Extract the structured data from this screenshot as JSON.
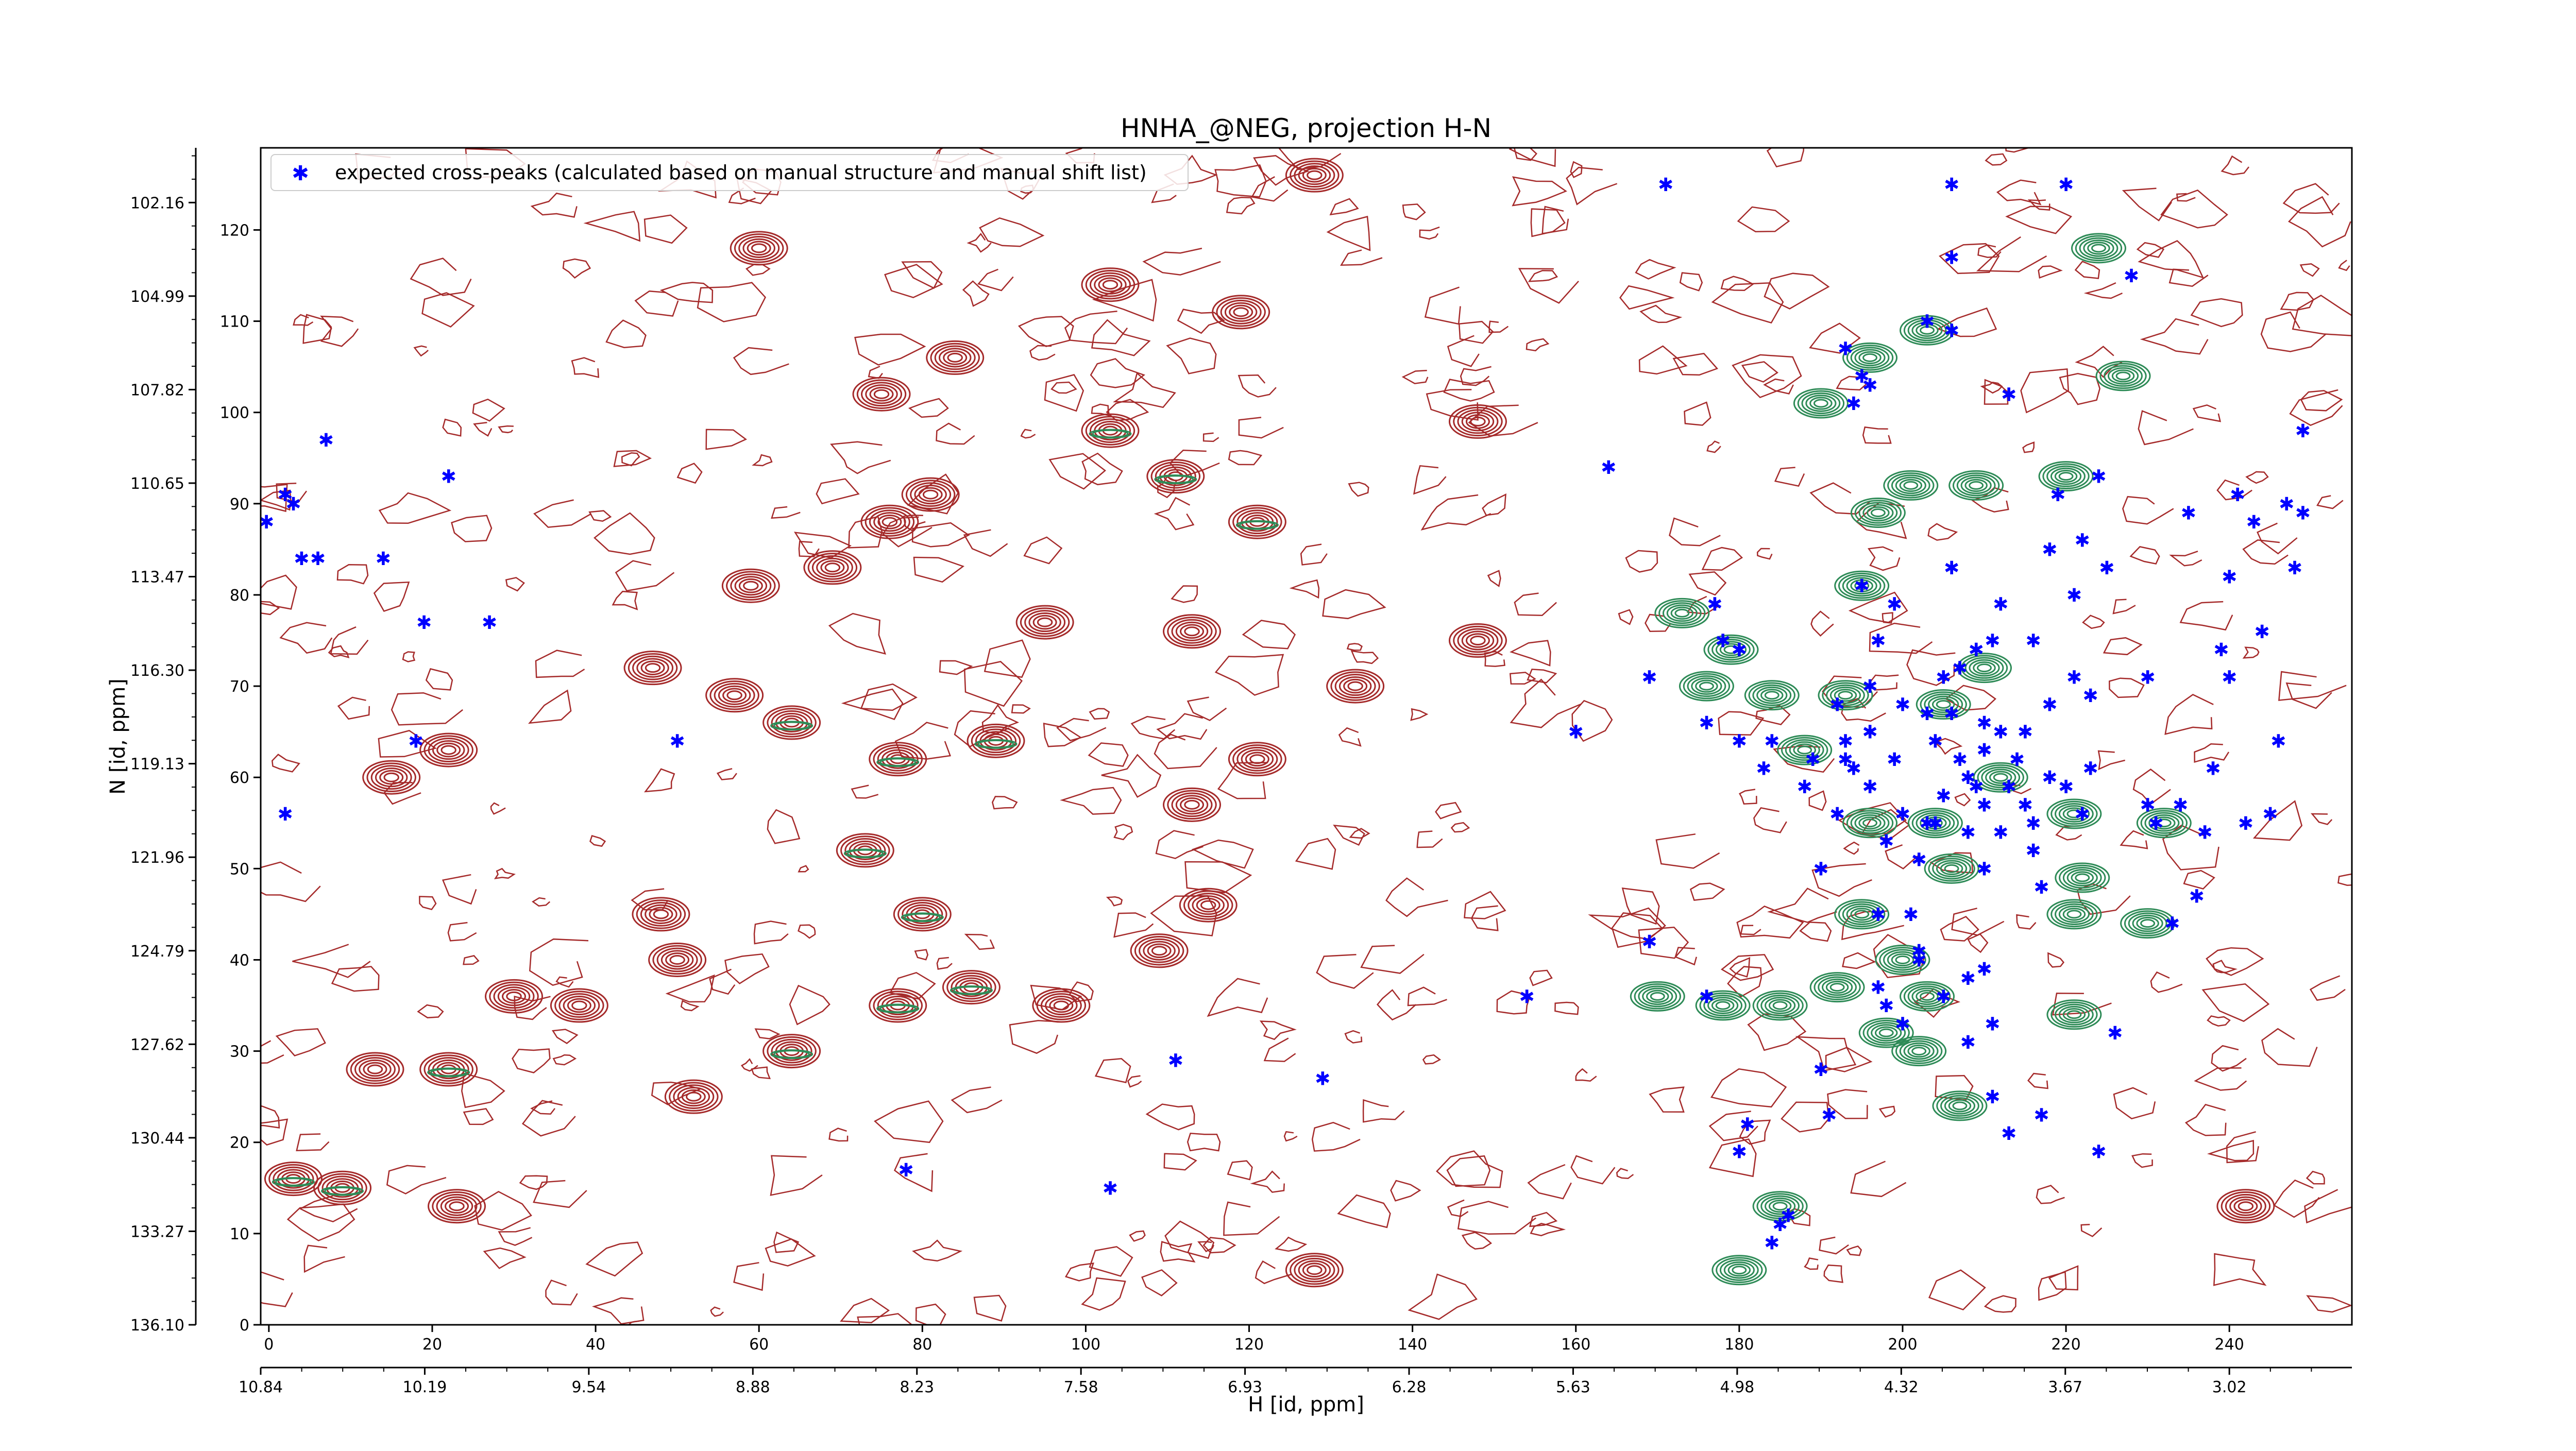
{
  "chart_data": {
    "type": "scatter",
    "title": "HNHA_@NEG, projection H-N",
    "xlabel": "H [id, ppm]",
    "ylabel": "N [id, ppm]",
    "xlim": [
      -1,
      255
    ],
    "ylim": [
      0,
      129
    ],
    "x_index_ticks": [
      "0",
      "20",
      "40",
      "60",
      "80",
      "100",
      "120",
      "140",
      "160",
      "180",
      "200",
      "220",
      "240"
    ],
    "y_index_ticks": [
      "0",
      "10",
      "20",
      "30",
      "40",
      "50",
      "60",
      "70",
      "80",
      "90",
      "100",
      "110",
      "120"
    ],
    "x_ppm_ticks": [
      "10.84",
      "10.19",
      "9.54",
      "8.88",
      "8.23",
      "7.58",
      "6.93",
      "6.28",
      "5.63",
      "4.98",
      "4.32",
      "3.67",
      "3.02"
    ],
    "y_ppm_ticks": [
      "136.10",
      "133.27",
      "130.44",
      "127.62",
      "124.79",
      "121.96",
      "119.13",
      "116.30",
      "113.47",
      "110.65",
      "107.82",
      "104.99",
      "102.16"
    ],
    "legend": {
      "label": "expected cross-peaks (calculated based on manual structure and manual shift list)",
      "location": "upper-left",
      "color": "#0000ff"
    },
    "colors": {
      "positive_contour": "#a52a2a",
      "negative_contour": "#2e8b57",
      "markers": "#0000ff"
    },
    "series": [
      {
        "name": "expected cross-peaks (calculated based on manual structure and manual shift list)",
        "points": [
          [
            -0.3,
            88.0
          ],
          [
            2,
            91
          ],
          [
            3,
            90
          ],
          [
            4,
            84
          ],
          [
            6,
            84
          ],
          [
            7,
            97
          ],
          [
            14,
            84
          ],
          [
            22,
            93
          ],
          [
            19,
            77
          ],
          [
            27,
            77
          ],
          [
            2,
            56
          ],
          [
            18,
            64
          ],
          [
            50,
            64
          ],
          [
            78,
            17
          ],
          [
            103,
            15
          ],
          [
            111,
            29
          ],
          [
            129,
            27
          ],
          [
            154,
            36
          ],
          [
            160,
            65
          ],
          [
            164,
            94
          ],
          [
            169,
            42
          ],
          [
            169,
            71
          ],
          [
            171,
            125
          ],
          [
            176,
            66
          ],
          [
            176,
            36
          ],
          [
            177,
            79
          ],
          [
            178,
            75
          ],
          [
            180,
            64
          ],
          [
            180,
            74
          ],
          [
            181,
            22
          ],
          [
            180,
            19
          ],
          [
            184,
            9
          ],
          [
            183,
            61
          ],
          [
            184,
            64
          ],
          [
            185,
            11
          ],
          [
            186,
            12
          ],
          [
            188,
            59
          ],
          [
            189,
            62
          ],
          [
            190,
            50
          ],
          [
            190,
            28
          ],
          [
            191,
            23
          ],
          [
            192,
            56
          ],
          [
            193,
            64
          ],
          [
            193,
            62
          ],
          [
            192,
            68
          ],
          [
            194,
            101
          ],
          [
            193,
            107
          ],
          [
            195,
            104
          ],
          [
            194,
            61
          ],
          [
            195,
            81
          ],
          [
            196,
            59
          ],
          [
            196,
            70
          ],
          [
            196,
            103
          ],
          [
            196,
            65
          ],
          [
            197,
            75
          ],
          [
            197,
            45
          ],
          [
            197,
            37
          ],
          [
            198,
            35
          ],
          [
            199,
            79
          ],
          [
            198,
            53
          ],
          [
            199,
            62
          ],
          [
            200,
            56
          ],
          [
            200,
            68
          ],
          [
            201,
            45
          ],
          [
            200,
            33
          ],
          [
            202,
            40
          ],
          [
            202,
            41
          ],
          [
            202,
            51
          ],
          [
            203,
            110
          ],
          [
            203,
            55
          ],
          [
            203,
            67
          ],
          [
            204,
            55
          ],
          [
            204,
            64
          ],
          [
            205,
            58
          ],
          [
            205,
            36
          ],
          [
            205,
            71
          ],
          [
            206,
            125
          ],
          [
            206,
            117
          ],
          [
            206,
            109
          ],
          [
            206,
            83
          ],
          [
            206,
            67
          ],
          [
            207,
            62
          ],
          [
            207,
            72
          ],
          [
            208,
            54
          ],
          [
            208,
            60
          ],
          [
            208,
            38
          ],
          [
            208,
            31
          ],
          [
            209,
            59
          ],
          [
            209,
            74
          ],
          [
            210,
            66
          ],
          [
            210,
            63
          ],
          [
            210,
            57
          ],
          [
            210,
            50
          ],
          [
            210,
            39
          ],
          [
            211,
            33
          ],
          [
            211,
            25
          ],
          [
            211,
            75
          ],
          [
            212,
            79
          ],
          [
            212,
            65
          ],
          [
            212,
            54
          ],
          [
            213,
            59
          ],
          [
            213,
            21
          ],
          [
            213,
            102
          ],
          [
            214,
            62
          ],
          [
            215,
            57
          ],
          [
            215,
            65
          ],
          [
            216,
            55
          ],
          [
            216,
            52
          ],
          [
            216,
            75
          ],
          [
            217,
            23
          ],
          [
            217,
            48
          ],
          [
            218,
            85
          ],
          [
            218,
            68
          ],
          [
            218,
            60
          ],
          [
            219,
            91
          ],
          [
            220,
            125
          ],
          [
            220,
            59
          ],
          [
            221,
            71
          ],
          [
            221,
            80
          ],
          [
            222,
            86
          ],
          [
            222,
            56
          ],
          [
            223,
            69
          ],
          [
            223,
            61
          ],
          [
            224,
            93
          ],
          [
            224,
            19
          ],
          [
            225,
            83
          ],
          [
            226,
            32
          ],
          [
            228,
            115
          ],
          [
            230,
            57
          ],
          [
            230,
            71
          ],
          [
            231,
            55
          ],
          [
            233,
            44
          ],
          [
            234,
            57
          ],
          [
            235,
            89
          ],
          [
            236,
            47
          ],
          [
            237,
            54
          ],
          [
            238,
            61
          ],
          [
            239,
            74
          ],
          [
            240,
            82
          ],
          [
            240,
            71
          ],
          [
            241,
            91
          ],
          [
            242,
            55
          ],
          [
            243,
            88
          ],
          [
            244,
            76
          ],
          [
            245,
            56
          ],
          [
            246,
            64
          ],
          [
            247,
            90
          ],
          [
            248,
            83
          ],
          [
            249,
            89
          ],
          [
            249,
            98
          ]
        ]
      }
    ],
    "contour_peaks": [
      {
        "x": 60,
        "y": 118,
        "type": "positive"
      },
      {
        "x": 103,
        "y": 114,
        "type": "positive"
      },
      {
        "x": 119,
        "y": 111,
        "type": "positive"
      },
      {
        "x": 84,
        "y": 106,
        "type": "positive"
      },
      {
        "x": 75,
        "y": 102,
        "type": "positive"
      },
      {
        "x": 128,
        "y": 126,
        "type": "positive"
      },
      {
        "x": 103,
        "y": 98,
        "type": "both"
      },
      {
        "x": 121,
        "y": 88,
        "type": "both"
      },
      {
        "x": 111,
        "y": 93,
        "type": "both"
      },
      {
        "x": 81,
        "y": 91,
        "type": "positive"
      },
      {
        "x": 76,
        "y": 88,
        "type": "positive"
      },
      {
        "x": 59,
        "y": 81,
        "type": "positive"
      },
      {
        "x": 69,
        "y": 83,
        "type": "positive"
      },
      {
        "x": 113,
        "y": 76,
        "type": "positive"
      },
      {
        "x": 95,
        "y": 77,
        "type": "positive"
      },
      {
        "x": 89,
        "y": 64,
        "type": "both"
      },
      {
        "x": 77,
        "y": 62,
        "type": "both"
      },
      {
        "x": 64,
        "y": 66,
        "type": "both"
      },
      {
        "x": 57,
        "y": 69,
        "type": "positive"
      },
      {
        "x": 133,
        "y": 70,
        "type": "positive"
      },
      {
        "x": 121,
        "y": 62,
        "type": "positive"
      },
      {
        "x": 113,
        "y": 57,
        "type": "positive"
      },
      {
        "x": 73,
        "y": 52,
        "type": "both"
      },
      {
        "x": 80,
        "y": 45,
        "type": "both"
      },
      {
        "x": 86,
        "y": 37,
        "type": "both"
      },
      {
        "x": 77,
        "y": 35,
        "type": "both"
      },
      {
        "x": 97,
        "y": 35,
        "type": "positive"
      },
      {
        "x": 109,
        "y": 41,
        "type": "positive"
      },
      {
        "x": 115,
        "y": 46,
        "type": "positive"
      },
      {
        "x": 64,
        "y": 30,
        "type": "both"
      },
      {
        "x": 52,
        "y": 25,
        "type": "positive"
      },
      {
        "x": 50,
        "y": 40,
        "type": "positive"
      },
      {
        "x": 48,
        "y": 45,
        "type": "positive"
      },
      {
        "x": 38,
        "y": 35,
        "type": "positive"
      },
      {
        "x": 30,
        "y": 36,
        "type": "positive"
      },
      {
        "x": 15,
        "y": 60,
        "type": "positive"
      },
      {
        "x": 22,
        "y": 63,
        "type": "positive"
      },
      {
        "x": 22,
        "y": 28,
        "type": "both"
      },
      {
        "x": 13,
        "y": 28,
        "type": "positive"
      },
      {
        "x": 3,
        "y": 16,
        "type": "both"
      },
      {
        "x": 9,
        "y": 15,
        "type": "both"
      },
      {
        "x": 23,
        "y": 13,
        "type": "positive"
      },
      {
        "x": 128,
        "y": 6,
        "type": "positive"
      },
      {
        "x": 242,
        "y": 13,
        "type": "positive"
      },
      {
        "x": 47,
        "y": 72,
        "type": "positive"
      },
      {
        "x": 148,
        "y": 75,
        "type": "positive"
      },
      {
        "x": 148,
        "y": 99,
        "type": "positive"
      },
      {
        "x": 176,
        "y": 70,
        "type": "negative"
      },
      {
        "x": 173,
        "y": 78,
        "type": "negative"
      },
      {
        "x": 179,
        "y": 74,
        "type": "negative"
      },
      {
        "x": 184,
        "y": 69,
        "type": "negative"
      },
      {
        "x": 188,
        "y": 63,
        "type": "negative"
      },
      {
        "x": 193,
        "y": 69,
        "type": "negative"
      },
      {
        "x": 195,
        "y": 81,
        "type": "negative"
      },
      {
        "x": 197,
        "y": 89,
        "type": "negative"
      },
      {
        "x": 205,
        "y": 68,
        "type": "negative"
      },
      {
        "x": 210,
        "y": 72,
        "type": "negative"
      },
      {
        "x": 212,
        "y": 60,
        "type": "negative"
      },
      {
        "x": 204,
        "y": 55,
        "type": "negative"
      },
      {
        "x": 196,
        "y": 55,
        "type": "negative"
      },
      {
        "x": 195,
        "y": 45,
        "type": "negative"
      },
      {
        "x": 200,
        "y": 40,
        "type": "negative"
      },
      {
        "x": 206,
        "y": 50,
        "type": "negative"
      },
      {
        "x": 192,
        "y": 37,
        "type": "negative"
      },
      {
        "x": 198,
        "y": 32,
        "type": "negative"
      },
      {
        "x": 203,
        "y": 36,
        "type": "negative"
      },
      {
        "x": 185,
        "y": 35,
        "type": "negative"
      },
      {
        "x": 178,
        "y": 35,
        "type": "negative"
      },
      {
        "x": 170,
        "y": 36,
        "type": "negative"
      },
      {
        "x": 202,
        "y": 30,
        "type": "negative"
      },
      {
        "x": 207,
        "y": 24,
        "type": "negative"
      },
      {
        "x": 180,
        "y": 6,
        "type": "negative"
      },
      {
        "x": 185,
        "y": 13,
        "type": "negative"
      },
      {
        "x": 201,
        "y": 92,
        "type": "negative"
      },
      {
        "x": 209,
        "y": 92,
        "type": "negative"
      },
      {
        "x": 221,
        "y": 45,
        "type": "negative"
      },
      {
        "x": 222,
        "y": 49,
        "type": "negative"
      },
      {
        "x": 230,
        "y": 44,
        "type": "negative"
      },
      {
        "x": 221,
        "y": 34,
        "type": "negative"
      },
      {
        "x": 221,
        "y": 56,
        "type": "negative"
      },
      {
        "x": 224,
        "y": 118,
        "type": "negative"
      },
      {
        "x": 220,
        "y": 93,
        "type": "negative"
      },
      {
        "x": 227,
        "y": 104,
        "type": "negative"
      },
      {
        "x": 196,
        "y": 106,
        "type": "negative"
      },
      {
        "x": 203,
        "y": 109,
        "type": "negative"
      },
      {
        "x": 190,
        "y": 101,
        "type": "negative"
      },
      {
        "x": 232,
        "y": 55,
        "type": "negative"
      }
    ]
  }
}
